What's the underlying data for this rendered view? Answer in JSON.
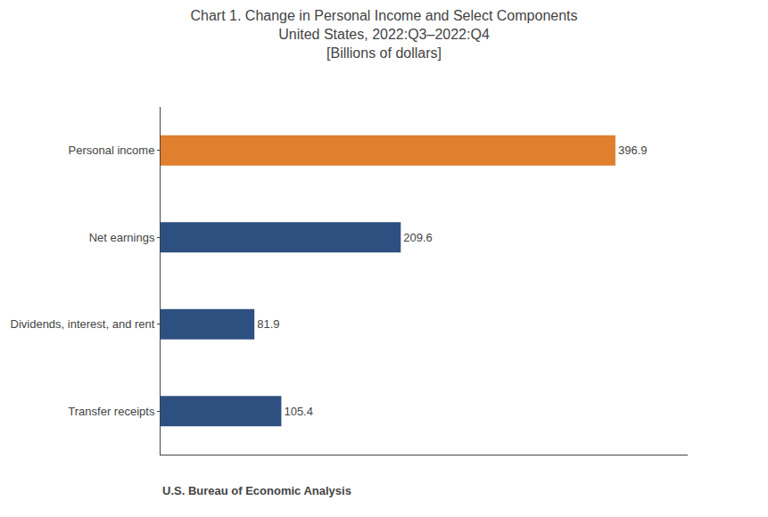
{
  "chart_data": {
    "type": "bar",
    "orientation": "horizontal",
    "title": "Chart 1. Change in Personal Income and Select Components",
    "subtitle": [
      "United States, 2022:Q3–2022:Q4",
      "[Billions of dollars]"
    ],
    "categories": [
      "Personal income",
      "Net earnings",
      "Dividends, interest, and rent",
      "Transfer receipts"
    ],
    "values": [
      396.9,
      209.6,
      81.9,
      105.4
    ],
    "colors": [
      "#e07f2e",
      "#2e5080",
      "#2e5080",
      "#2e5080"
    ],
    "data_labels": true,
    "xlim": [
      0,
      460
    ],
    "tick_labels": "y",
    "grid": false,
    "annotations": [
      "U.S. Bureau of Economic Analysis"
    ]
  }
}
